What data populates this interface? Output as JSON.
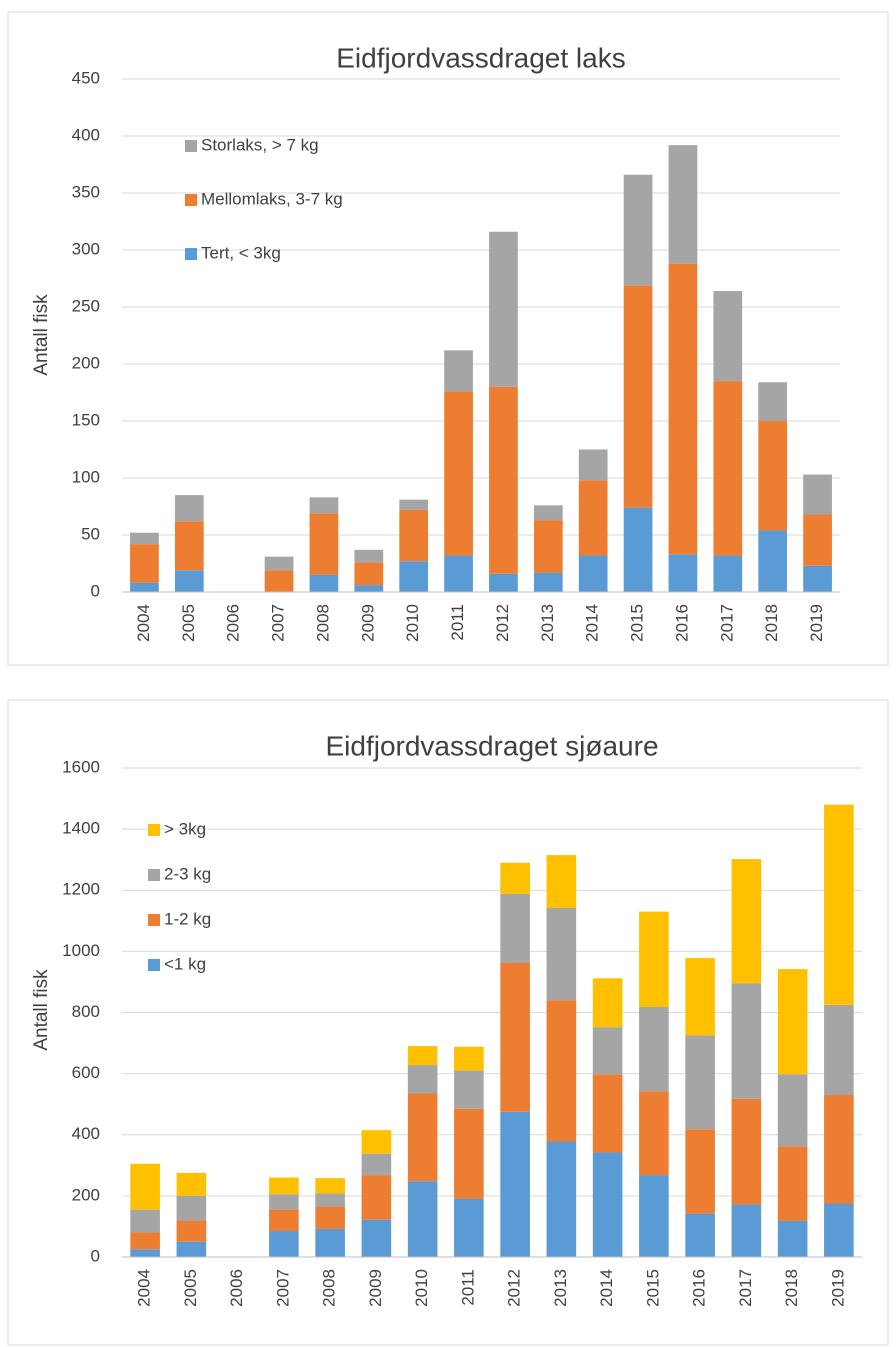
{
  "chart_data": [
    {
      "type": "bar",
      "stacked": true,
      "title": "Eidfjordvassdraget laks",
      "y_label": "Antall fisk",
      "categories": [
        "2004",
        "2005",
        "2006",
        "2007",
        "2008",
        "2009",
        "2010",
        "2011",
        "2012",
        "2013",
        "2014",
        "2015",
        "2016",
        "2017",
        "2018",
        "2019"
      ],
      "series": [
        {
          "name": "Tert, < 3kg",
          "color": "#5b9bd5",
          "values": [
            8,
            19,
            0,
            0,
            15,
            6,
            27,
            32,
            16,
            17,
            32,
            74,
            33,
            32,
            54,
            23
          ]
        },
        {
          "name": "Mellomlaks, 3-7 kg",
          "color": "#ed7d31",
          "values": [
            34,
            43,
            0,
            19,
            54,
            20,
            45,
            144,
            164,
            46,
            66,
            195,
            255,
            153,
            96,
            45
          ]
        },
        {
          "name": "Storlaks, > 7 kg",
          "color": "#a5a5a5",
          "values": [
            10,
            23,
            0,
            12,
            14,
            11,
            9,
            36,
            136,
            13,
            27,
            97,
            104,
            79,
            34,
            35
          ]
        }
      ],
      "ylim": [
        0,
        450
      ],
      "yticks": [
        0,
        50,
        100,
        150,
        200,
        250,
        300,
        350,
        400,
        450
      ],
      "grid": true
    },
    {
      "type": "bar",
      "stacked": true,
      "title": "Eidfjordvassdraget sjøaure",
      "y_label": "Antall fisk",
      "categories": [
        "2004",
        "2005",
        "2006",
        "2007",
        "2008",
        "2009",
        "2010",
        "2011",
        "2012",
        "2013",
        "2014",
        "2015",
        "2016",
        "2017",
        "2018",
        "2019"
      ],
      "series": [
        {
          "name": "<1 kg",
          "color": "#5b9bd5",
          "values": [
            25,
            50,
            0,
            85,
            92,
            122,
            248,
            190,
            475,
            378,
            342,
            268,
            142,
            172,
            118,
            175
          ]
        },
        {
          "name": "1-2 kg",
          "color": "#ed7d31",
          "values": [
            55,
            70,
            0,
            70,
            73,
            146,
            287,
            295,
            487,
            462,
            256,
            274,
            276,
            346,
            244,
            355
          ]
        },
        {
          "name": "2-3 kg",
          "color": "#a5a5a5",
          "values": [
            75,
            80,
            0,
            50,
            43,
            70,
            93,
            125,
            226,
            302,
            154,
            276,
            307,
            377,
            236,
            295
          ]
        },
        {
          "name": "> 3kg",
          "color": "#ffc000",
          "values": [
            150,
            75,
            0,
            55,
            50,
            77,
            62,
            78,
            102,
            173,
            160,
            312,
            253,
            407,
            344,
            655
          ]
        }
      ],
      "ylim": [
        0,
        1600
      ],
      "yticks": [
        0,
        200,
        400,
        600,
        800,
        1000,
        1200,
        1400,
        1600
      ],
      "grid": true
    }
  ]
}
